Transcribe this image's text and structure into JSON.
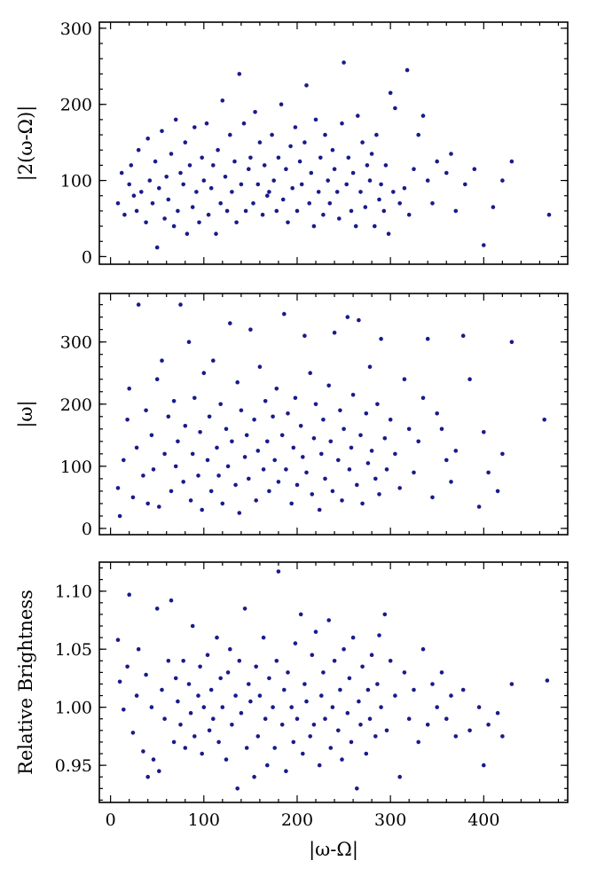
{
  "chart_data": [
    {
      "type": "scatter",
      "ylabel": "|2(ω-Ω)|",
      "xlabel": "",
      "xlim": [
        -12,
        490
      ],
      "ylim": [
        -10,
        308
      ],
      "xticks": [
        0,
        100,
        200,
        300,
        400
      ],
      "yticks": [
        0,
        100,
        200,
        300
      ],
      "yticklabels": [
        "0",
        "100",
        "200",
        "300"
      ],
      "grid": false,
      "marker_color": "#1a1a8c",
      "series": [
        {
          "x": [
            8,
            12,
            15,
            20,
            22,
            25,
            28,
            30,
            33,
            38,
            40,
            42,
            45,
            48,
            50,
            52,
            55,
            58,
            60,
            62,
            65,
            68,
            70,
            72,
            75,
            78,
            80,
            82,
            85,
            88,
            90,
            92,
            95,
            98,
            100,
            103,
            105,
            108,
            110,
            113,
            115,
            118,
            120,
            123,
            125,
            128,
            130,
            133,
            135,
            138,
            140,
            143,
            145,
            148,
            150,
            153,
            155,
            158,
            160,
            163,
            165,
            168,
            170,
            173,
            175,
            178,
            180,
            183,
            185,
            188,
            190,
            193,
            195,
            198,
            200,
            203,
            205,
            208,
            210,
            213,
            215,
            218,
            220,
            223,
            225,
            228,
            230,
            233,
            235,
            238,
            240,
            243,
            245,
            248,
            250,
            253,
            255,
            258,
            260,
            263,
            265,
            268,
            270,
            273,
            275,
            278,
            280,
            283,
            285,
            288,
            290,
            293,
            295,
            298,
            300,
            303,
            305,
            310,
            315,
            318,
            320,
            325,
            330,
            335,
            340,
            345,
            350,
            360,
            365,
            370,
            380,
            390,
            400,
            410,
            420,
            430,
            470
          ],
          "y": [
            70,
            110,
            55,
            95,
            120,
            80,
            60,
            140,
            85,
            45,
            155,
            100,
            70,
            125,
            12,
            90,
            165,
            50,
            105,
            75,
            135,
            40,
            180,
            60,
            110,
            95,
            150,
            30,
            120,
            65,
            170,
            85,
            45,
            130,
            100,
            175,
            55,
            90,
            120,
            30,
            140,
            70,
            205,
            105,
            60,
            160,
            85,
            125,
            45,
            240,
            95,
            175,
            60,
            115,
            130,
            70,
            190,
            95,
            150,
            55,
            120,
            80,
            85,
            160,
            100,
            60,
            130,
            200,
            75,
            115,
            45,
            145,
            90,
            170,
            60,
            125,
            95,
            150,
            225,
            70,
            110,
            40,
            180,
            85,
            130,
            55,
            160,
            100,
            70,
            140,
            115,
            85,
            50,
            175,
            255,
            95,
            130,
            60,
            110,
            40,
            185,
            85,
            150,
            65,
            120,
            100,
            135,
            40,
            160,
            75,
            95,
            60,
            120,
            30,
            215,
            85,
            195,
            70,
            90,
            245,
            55,
            115,
            160,
            185,
            100,
            70,
            125,
            110,
            135,
            60,
            95,
            115,
            15,
            65,
            100,
            125,
            55
          ]
        }
      ]
    },
    {
      "type": "scatter",
      "ylabel": "|ω|",
      "xlabel": "",
      "xlim": [
        -12,
        490
      ],
      "ylim": [
        -10,
        378
      ],
      "xticks": [
        0,
        100,
        200,
        300,
        400
      ],
      "yticks": [
        0,
        100,
        200,
        300
      ],
      "yticklabels": [
        "0",
        "100",
        "200",
        "300"
      ],
      "grid": false,
      "marker_color": "#1a1a8c",
      "series": [
        {
          "x": [
            8,
            10,
            14,
            18,
            20,
            24,
            28,
            30,
            35,
            38,
            40,
            44,
            46,
            50,
            52,
            55,
            58,
            62,
            65,
            68,
            70,
            72,
            75,
            78,
            80,
            84,
            86,
            88,
            90,
            94,
            96,
            98,
            100,
            104,
            106,
            108,
            110,
            114,
            116,
            118,
            120,
            124,
            126,
            128,
            130,
            134,
            136,
            138,
            140,
            144,
            146,
            148,
            150,
            154,
            156,
            158,
            160,
            164,
            166,
            168,
            170,
            174,
            176,
            178,
            180,
            184,
            186,
            188,
            190,
            194,
            196,
            198,
            200,
            204,
            206,
            208,
            210,
            214,
            216,
            218,
            220,
            224,
            226,
            228,
            230,
            234,
            236,
            238,
            240,
            244,
            246,
            248,
            250,
            254,
            256,
            258,
            260,
            264,
            266,
            268,
            270,
            274,
            276,
            278,
            280,
            284,
            286,
            288,
            290,
            294,
            296,
            300,
            305,
            310,
            315,
            320,
            325,
            330,
            335,
            340,
            345,
            350,
            355,
            360,
            365,
            370,
            378,
            385,
            395,
            400,
            405,
            415,
            420,
            430,
            465
          ],
          "y": [
            65,
            20,
            110,
            175,
            225,
            50,
            130,
            360,
            85,
            190,
            40,
            150,
            95,
            240,
            35,
            270,
            120,
            180,
            60,
            205,
            100,
            140,
            360,
            75,
            165,
            300,
            45,
            120,
            210,
            85,
            155,
            30,
            250,
            110,
            180,
            60,
            270,
            130,
            85,
            200,
            40,
            160,
            100,
            330,
            140,
            70,
            235,
            25,
            190,
            115,
            150,
            80,
            320,
            175,
            45,
            125,
            260,
            95,
            205,
            140,
            60,
            180,
            110,
            225,
            75,
            150,
            345,
            95,
            185,
            40,
            130,
            210,
            70,
            165,
            115,
            310,
            90,
            250,
            55,
            145,
            200,
            30,
            120,
            175,
            80,
            230,
            140,
            60,
            315,
            110,
            190,
            45,
            160,
            340,
            95,
            130,
            215,
            70,
            335,
            150,
            40,
            185,
            105,
            260,
            125,
            80,
            200,
            55,
            305,
            145,
            95,
            175,
            120,
            65,
            240,
            160,
            90,
            140,
            210,
            305,
            50,
            185,
            160,
            110,
            75,
            125,
            310,
            240,
            35,
            155,
            90,
            60,
            120,
            300,
            175
          ]
        }
      ]
    },
    {
      "type": "scatter",
      "ylabel": "Relative Brightness",
      "xlabel": "|ω-Ω|",
      "xlim": [
        -12,
        490
      ],
      "ylim": [
        0.918,
        1.125
      ],
      "xticks": [
        0,
        100,
        200,
        300,
        400
      ],
      "xticklabels": [
        "0",
        "100",
        "200",
        "300",
        "400"
      ],
      "yticks": [
        0.95,
        1.0,
        1.05,
        1.1
      ],
      "yticklabels": [
        "0.95",
        "1.00",
        "1.05",
        "1.10"
      ],
      "grid": false,
      "marker_color": "#1a1a8c",
      "series": [
        {
          "x": [
            8,
            10,
            14,
            18,
            20,
            24,
            28,
            30,
            35,
            38,
            40,
            44,
            46,
            50,
            52,
            55,
            58,
            62,
            65,
            68,
            70,
            72,
            75,
            78,
            80,
            84,
            86,
            88,
            90,
            94,
            96,
            98,
            100,
            104,
            106,
            108,
            110,
            114,
            116,
            118,
            120,
            124,
            126,
            128,
            130,
            134,
            136,
            138,
            140,
            144,
            146,
            148,
            150,
            154,
            156,
            158,
            160,
            164,
            166,
            168,
            170,
            174,
            176,
            178,
            180,
            184,
            186,
            188,
            190,
            194,
            196,
            198,
            200,
            204,
            206,
            208,
            210,
            214,
            216,
            218,
            220,
            224,
            226,
            228,
            230,
            234,
            236,
            238,
            240,
            244,
            246,
            248,
            250,
            254,
            256,
            258,
            260,
            264,
            266,
            268,
            270,
            274,
            276,
            278,
            280,
            284,
            286,
            288,
            290,
            294,
            296,
            300,
            305,
            310,
            315,
            320,
            325,
            330,
            335,
            340,
            345,
            350,
            355,
            360,
            365,
            370,
            378,
            385,
            395,
            400,
            405,
            415,
            420,
            430,
            468
          ],
          "y": [
            1.058,
            1.022,
            0.998,
            1.035,
            1.097,
            0.978,
            1.01,
            1.05,
            0.962,
            1.028,
            0.94,
            1.0,
            0.955,
            1.085,
            0.945,
            1.015,
            0.99,
            1.04,
            1.092,
            0.97,
            1.025,
            1.005,
            0.985,
            1.04,
            0.965,
            1.02,
            0.995,
            1.07,
            0.975,
            1.01,
            1.035,
            0.96,
            1.0,
            1.045,
            0.98,
            1.015,
            0.99,
            1.06,
            0.97,
            1.025,
            1.0,
            0.955,
            1.03,
            1.05,
            0.985,
            1.01,
            0.93,
            1.04,
            0.995,
            1.085,
            0.965,
            1.02,
            1.005,
            0.94,
            1.035,
            0.975,
            1.01,
            1.06,
            0.99,
            0.95,
            1.025,
            1.0,
            0.965,
            1.04,
            1.117,
            0.985,
            1.015,
            0.945,
            1.03,
            1.0,
            0.97,
            1.055,
            0.99,
            1.08,
            0.96,
            1.02,
            1.005,
            0.975,
            1.045,
            0.985,
            1.065,
            0.95,
            1.01,
            1.03,
            0.99,
            1.075,
            0.965,
            1.0,
            1.04,
            0.98,
            1.015,
            0.955,
            1.05,
            0.995,
            1.025,
            0.97,
            1.06,
            0.93,
            1.005,
            0.985,
            1.035,
            0.96,
            1.015,
            0.99,
            1.045,
            0.975,
            1.02,
            1.062,
            1.0,
            1.08,
            0.98,
            1.04,
            1.01,
            0.94,
            1.03,
            0.99,
            1.015,
            0.97,
            1.05,
            0.985,
            1.02,
            1.0,
            1.03,
            0.99,
            1.01,
            0.975,
            1.015,
            0.98,
            1.0,
            0.95,
            0.985,
            0.995,
            0.975,
            1.02,
            1.023
          ]
        }
      ]
    }
  ]
}
